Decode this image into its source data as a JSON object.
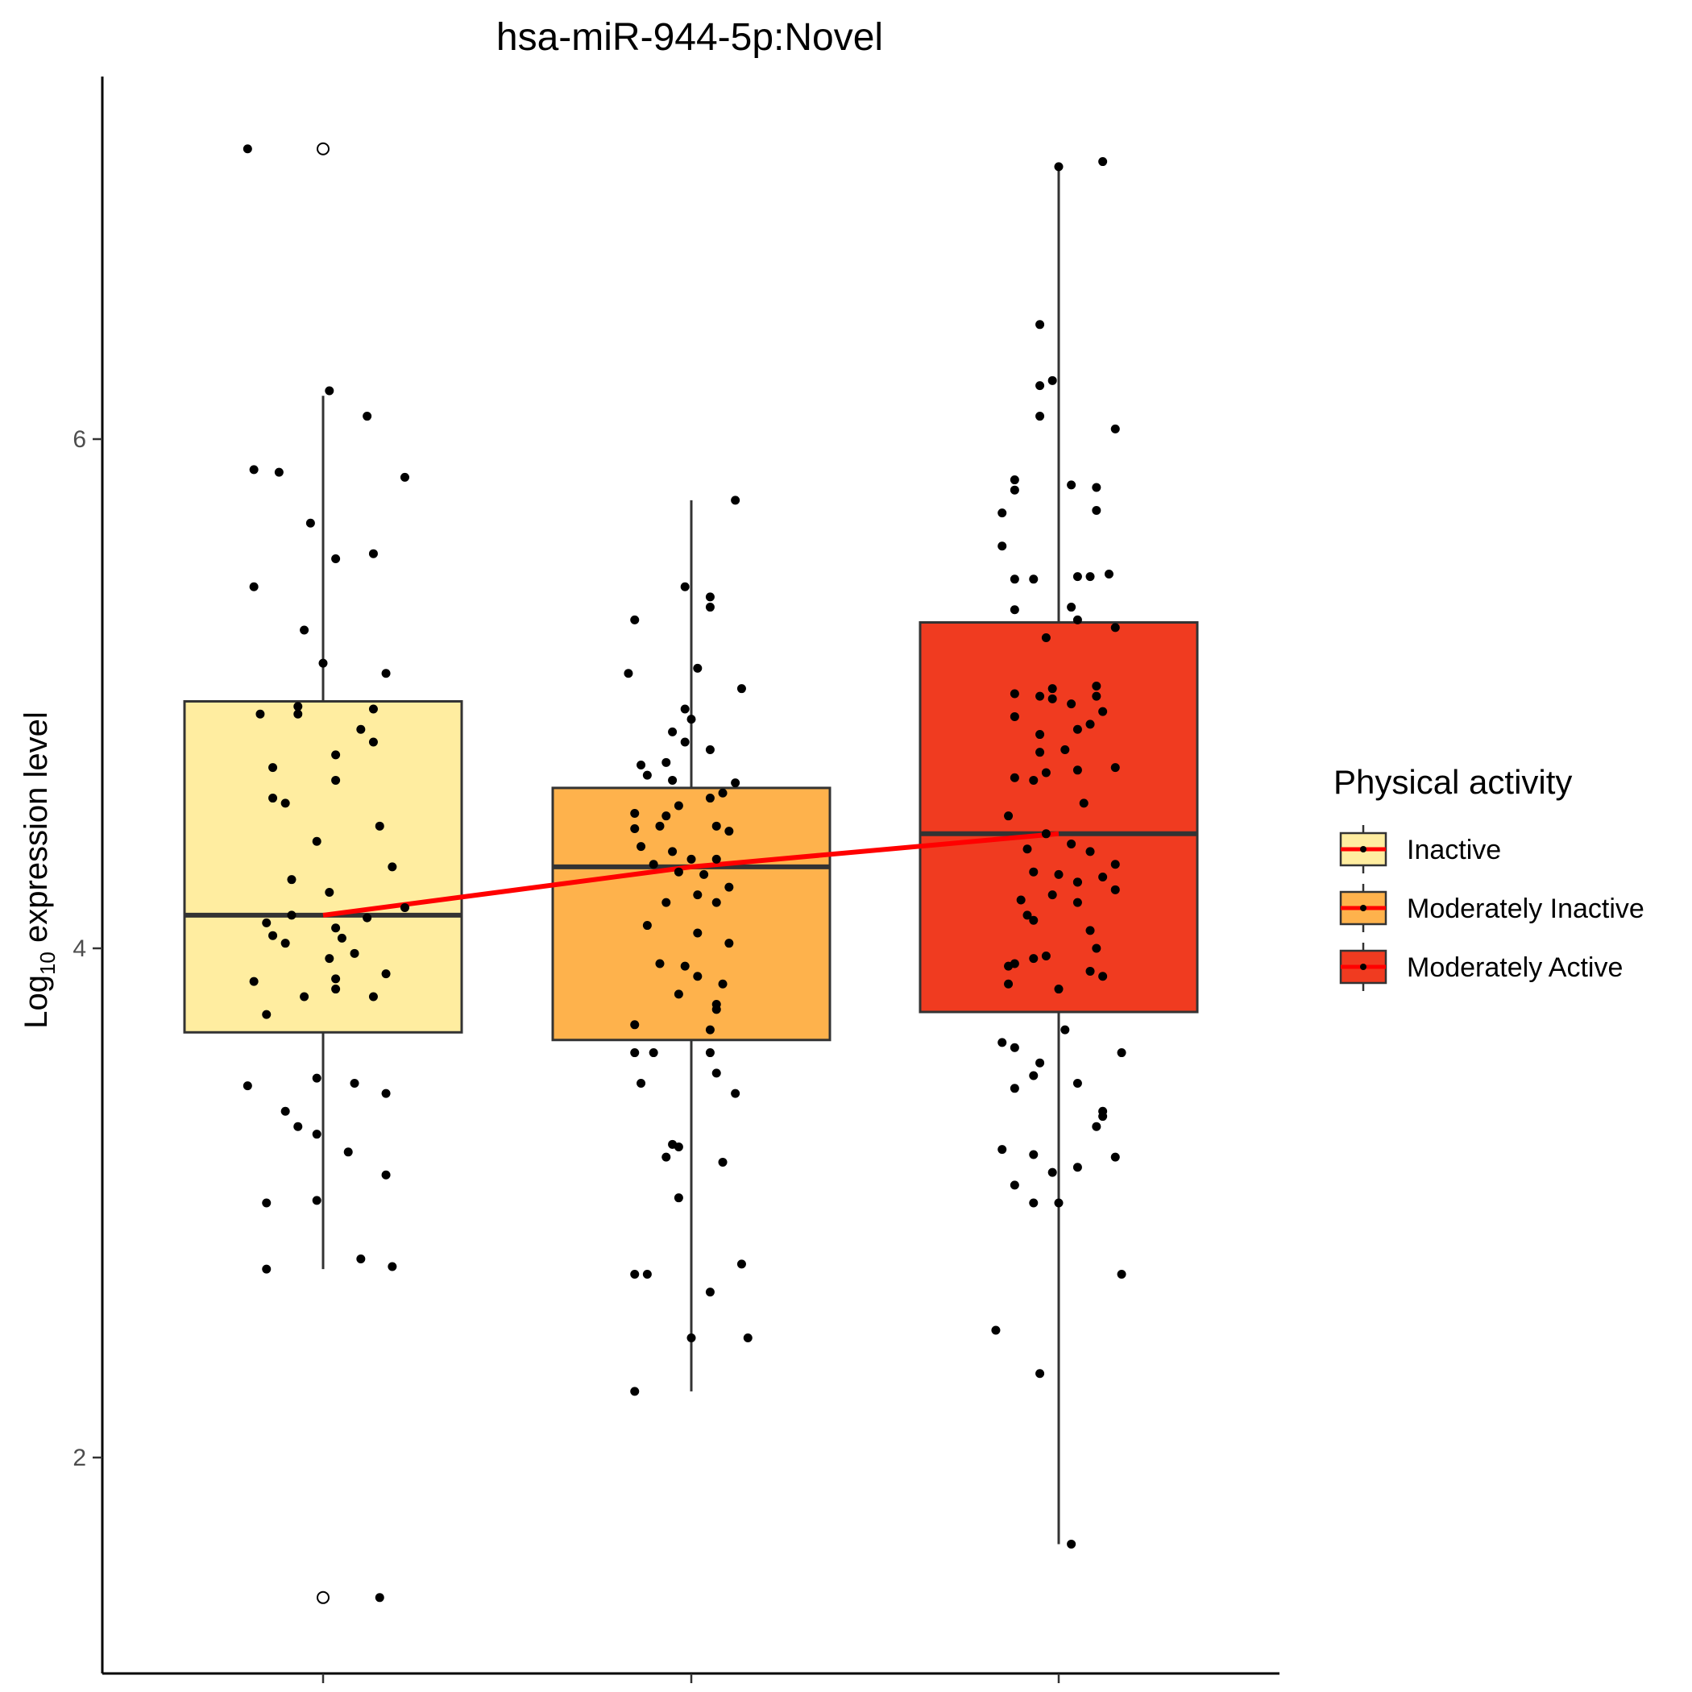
{
  "chart_data": {
    "type": "box",
    "title": "hsa-miR-944-5p:Novel",
    "ylabel_main": "Log",
    "ylabel_sub": "10",
    "ylabel_rest": " expression level",
    "xlabel": "",
    "ylim": [
      1.15,
      7.2
    ],
    "y_ticks": [
      2,
      4,
      6
    ],
    "y_tick_labels": [
      "2",
      "4",
      "6"
    ],
    "grid": false,
    "legend": {
      "title": "Physical activity",
      "position": "right",
      "entries": [
        "Inactive",
        "Moderately Inactive",
        "Moderately Active"
      ]
    },
    "trend_line_color": "#ff0000",
    "groups": [
      {
        "name": "Inactive",
        "color": "#ffeda0",
        "q1": 3.67,
        "median": 4.13,
        "q3": 4.97,
        "whisker_low": 2.74,
        "whisker_high": 6.17,
        "outliers": [
          7.14,
          1.45
        ],
        "points": [
          [
            -0.12,
            7.14
          ],
          [
            -0.11,
            5.88
          ],
          [
            -0.07,
            5.87
          ],
          [
            0.01,
            6.19
          ],
          [
            0.07,
            6.09
          ],
          [
            0.13,
            5.85
          ],
          [
            -0.02,
            5.67
          ],
          [
            0.02,
            5.53
          ],
          [
            0.08,
            5.55
          ],
          [
            -0.11,
            5.42
          ],
          [
            -0.03,
            5.25
          ],
          [
            0.0,
            5.12
          ],
          [
            0.1,
            5.08
          ],
          [
            -0.04,
            4.95
          ],
          [
            -0.1,
            4.92
          ],
          [
            -0.04,
            4.92
          ],
          [
            0.08,
            4.94
          ],
          [
            0.06,
            4.86
          ],
          [
            0.08,
            4.81
          ],
          [
            0.02,
            4.76
          ],
          [
            -0.08,
            4.71
          ],
          [
            0.02,
            4.66
          ],
          [
            -0.08,
            4.59
          ],
          [
            -0.06,
            4.57
          ],
          [
            0.09,
            4.48
          ],
          [
            -0.01,
            4.42
          ],
          [
            0.11,
            4.32
          ],
          [
            -0.05,
            4.27
          ],
          [
            0.01,
            4.22
          ],
          [
            0.13,
            4.16
          ],
          [
            -0.05,
            4.13
          ],
          [
            0.07,
            4.12
          ],
          [
            -0.09,
            4.1
          ],
          [
            0.02,
            4.08
          ],
          [
            -0.08,
            4.05
          ],
          [
            0.03,
            4.04
          ],
          [
            -0.06,
            4.02
          ],
          [
            0.05,
            3.98
          ],
          [
            0.01,
            3.96
          ],
          [
            0.1,
            3.9
          ],
          [
            0.02,
            3.88
          ],
          [
            -0.11,
            3.87
          ],
          [
            0.02,
            3.84
          ],
          [
            0.08,
            3.81
          ],
          [
            -0.03,
            3.81
          ],
          [
            -0.09,
            3.74
          ],
          [
            -0.01,
            3.49
          ],
          [
            -0.12,
            3.46
          ],
          [
            0.05,
            3.47
          ],
          [
            0.1,
            3.43
          ],
          [
            -0.06,
            3.36
          ],
          [
            -0.04,
            3.3
          ],
          [
            -0.01,
            3.27
          ],
          [
            0.04,
            3.2
          ],
          [
            0.1,
            3.11
          ],
          [
            -0.09,
            3.0
          ],
          [
            -0.01,
            3.01
          ],
          [
            0.06,
            2.78
          ],
          [
            -0.09,
            2.74
          ],
          [
            0.11,
            2.75
          ],
          [
            0.09,
            1.45
          ]
        ]
      },
      {
        "name": "Moderately Inactive",
        "color": "#feb24c",
        "q1": 3.64,
        "median": 4.32,
        "q3": 4.63,
        "whisker_low": 2.26,
        "whisker_high": 5.76,
        "outliers": [],
        "points": [
          [
            0.07,
            5.76
          ],
          [
            -0.01,
            5.42
          ],
          [
            0.03,
            5.38
          ],
          [
            -0.09,
            5.29
          ],
          [
            0.03,
            5.34
          ],
          [
            0.01,
            5.1
          ],
          [
            -0.1,
            5.08
          ],
          [
            0.08,
            5.02
          ],
          [
            -0.01,
            4.94
          ],
          [
            0.0,
            4.9
          ],
          [
            -0.03,
            4.85
          ],
          [
            -0.01,
            4.81
          ],
          [
            0.03,
            4.78
          ],
          [
            -0.04,
            4.73
          ],
          [
            -0.08,
            4.72
          ],
          [
            -0.07,
            4.68
          ],
          [
            -0.03,
            4.66
          ],
          [
            0.07,
            4.65
          ],
          [
            0.05,
            4.61
          ],
          [
            -0.02,
            4.56
          ],
          [
            0.03,
            4.59
          ],
          [
            -0.09,
            4.53
          ],
          [
            -0.04,
            4.52
          ],
          [
            -0.05,
            4.48
          ],
          [
            0.04,
            4.48
          ],
          [
            -0.09,
            4.47
          ],
          [
            0.06,
            4.46
          ],
          [
            -0.08,
            4.4
          ],
          [
            -0.03,
            4.38
          ],
          [
            0.0,
            4.35
          ],
          [
            0.04,
            4.35
          ],
          [
            -0.06,
            4.33
          ],
          [
            -0.02,
            4.3
          ],
          [
            0.02,
            4.29
          ],
          [
            0.06,
            4.24
          ],
          [
            0.01,
            4.21
          ],
          [
            -0.04,
            4.18
          ],
          [
            0.04,
            4.18
          ],
          [
            -0.07,
            4.09
          ],
          [
            0.01,
            4.06
          ],
          [
            0.06,
            4.02
          ],
          [
            -0.01,
            3.93
          ],
          [
            -0.05,
            3.94
          ],
          [
            0.01,
            3.89
          ],
          [
            0.05,
            3.86
          ],
          [
            -0.02,
            3.82
          ],
          [
            0.04,
            3.78
          ],
          [
            0.04,
            3.76
          ],
          [
            -0.09,
            3.7
          ],
          [
            0.03,
            3.68
          ],
          [
            -0.09,
            3.59
          ],
          [
            0.03,
            3.59
          ],
          [
            -0.06,
            3.59
          ],
          [
            0.04,
            3.51
          ],
          [
            -0.08,
            3.47
          ],
          [
            0.07,
            3.43
          ],
          [
            -0.03,
            3.23
          ],
          [
            -0.02,
            3.22
          ],
          [
            -0.04,
            3.18
          ],
          [
            0.05,
            3.16
          ],
          [
            -0.02,
            3.02
          ],
          [
            -0.09,
            2.72
          ],
          [
            -0.07,
            2.72
          ],
          [
            0.08,
            2.76
          ],
          [
            0.03,
            2.65
          ],
          [
            0.0,
            2.47
          ],
          [
            0.09,
            2.47
          ],
          [
            -0.09,
            2.26
          ]
        ]
      },
      {
        "name": "Moderately Active",
        "color": "#f03b20",
        "q1": 3.75,
        "median": 4.45,
        "q3": 5.28,
        "whisker_low": 1.66,
        "whisker_high": 7.07,
        "outliers": [],
        "points": [
          [
            0.07,
            7.09
          ],
          [
            0.0,
            7.07
          ],
          [
            -0.03,
            6.45
          ],
          [
            -0.03,
            6.21
          ],
          [
            -0.01,
            6.23
          ],
          [
            -0.03,
            6.09
          ],
          [
            0.09,
            6.04
          ],
          [
            -0.07,
            5.84
          ],
          [
            -0.07,
            5.8
          ],
          [
            0.02,
            5.82
          ],
          [
            0.06,
            5.81
          ],
          [
            -0.09,
            5.71
          ],
          [
            0.06,
            5.72
          ],
          [
            -0.09,
            5.58
          ],
          [
            -0.04,
            5.45
          ],
          [
            0.03,
            5.46
          ],
          [
            0.05,
            5.46
          ],
          [
            -0.07,
            5.45
          ],
          [
            0.08,
            5.47
          ],
          [
            -0.07,
            5.33
          ],
          [
            0.02,
            5.34
          ],
          [
            0.03,
            5.29
          ],
          [
            0.09,
            5.26
          ],
          [
            -0.02,
            5.22
          ],
          [
            -0.01,
            5.02
          ],
          [
            0.06,
            5.03
          ],
          [
            -0.07,
            5.0
          ],
          [
            -0.03,
            4.99
          ],
          [
            -0.01,
            4.98
          ],
          [
            0.06,
            4.99
          ],
          [
            0.02,
            4.96
          ],
          [
            -0.07,
            4.91
          ],
          [
            0.07,
            4.93
          ],
          [
            0.05,
            4.88
          ],
          [
            -0.03,
            4.84
          ],
          [
            0.03,
            4.86
          ],
          [
            -0.03,
            4.77
          ],
          [
            0.01,
            4.78
          ],
          [
            0.09,
            4.71
          ],
          [
            -0.02,
            4.69
          ],
          [
            0.03,
            4.7
          ],
          [
            -0.07,
            4.67
          ],
          [
            -0.04,
            4.66
          ],
          [
            0.04,
            4.57
          ],
          [
            -0.08,
            4.52
          ],
          [
            -0.02,
            4.45
          ],
          [
            0.02,
            4.41
          ],
          [
            -0.05,
            4.39
          ],
          [
            0.05,
            4.38
          ],
          [
            0.09,
            4.33
          ],
          [
            -0.04,
            4.3
          ],
          [
            0.0,
            4.29
          ],
          [
            0.07,
            4.28
          ],
          [
            0.03,
            4.26
          ],
          [
            0.03,
            4.26
          ],
          [
            -0.01,
            4.21
          ],
          [
            0.09,
            4.23
          ],
          [
            -0.06,
            4.19
          ],
          [
            0.03,
            4.18
          ],
          [
            -0.04,
            4.11
          ],
          [
            -0.05,
            4.13
          ],
          [
            0.05,
            4.07
          ],
          [
            0.06,
            4.0
          ],
          [
            -0.02,
            3.97
          ],
          [
            -0.04,
            3.96
          ],
          [
            -0.08,
            3.93
          ],
          [
            -0.07,
            3.94
          ],
          [
            0.05,
            3.91
          ],
          [
            0.07,
            3.89
          ],
          [
            -0.08,
            3.86
          ],
          [
            0.0,
            3.84
          ],
          [
            0.01,
            3.68
          ],
          [
            -0.09,
            3.63
          ],
          [
            -0.07,
            3.61
          ],
          [
            0.1,
            3.59
          ],
          [
            -0.03,
            3.55
          ],
          [
            -0.04,
            3.5
          ],
          [
            0.03,
            3.47
          ],
          [
            -0.07,
            3.45
          ],
          [
            0.07,
            3.36
          ],
          [
            0.07,
            3.34
          ],
          [
            0.06,
            3.3
          ],
          [
            -0.09,
            3.21
          ],
          [
            -0.04,
            3.19
          ],
          [
            0.09,
            3.18
          ],
          [
            0.03,
            3.14
          ],
          [
            -0.01,
            3.12
          ],
          [
            -0.07,
            3.07
          ],
          [
            -0.04,
            3.0
          ],
          [
            0.0,
            3.0
          ],
          [
            0.1,
            2.72
          ],
          [
            -0.1,
            2.5
          ],
          [
            -0.03,
            2.33
          ],
          [
            0.02,
            1.66
          ]
        ]
      }
    ]
  }
}
